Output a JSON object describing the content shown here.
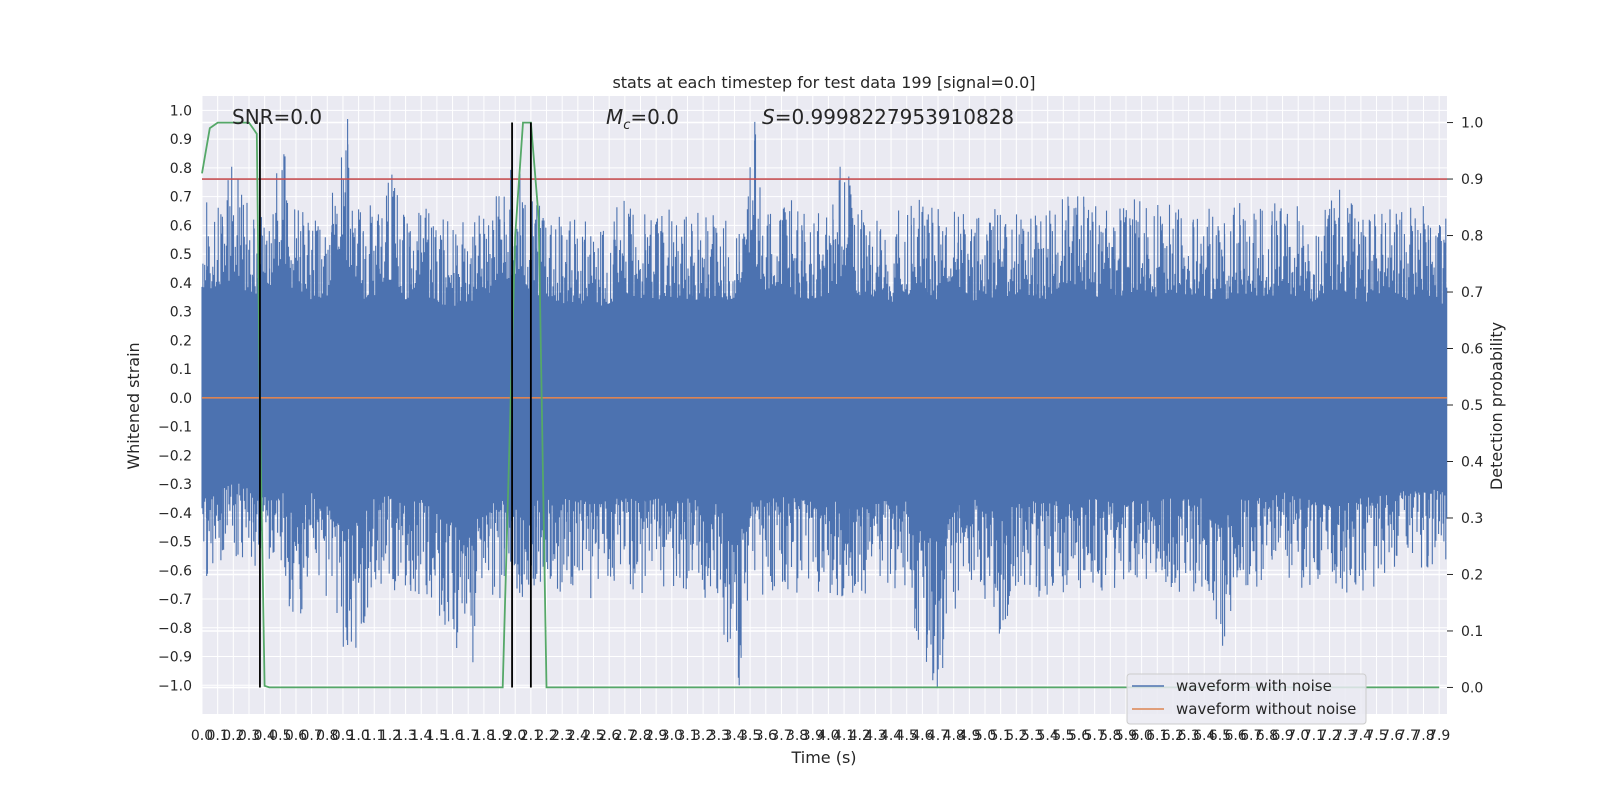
{
  "chart_data": {
    "type": "line",
    "title": "stats at each timestep for test data 199 [signal=0.0]",
    "xlabel": "Time (s)",
    "ylabel_left": "Whitened strain",
    "ylabel_right": "Detection probability",
    "xlim": [
      0.0,
      7.95
    ],
    "ylim_left": [
      -1.1,
      1.05
    ],
    "ylim_right": [
      -0.047,
      1.047
    ],
    "x_ticks": [
      "0.0",
      "0.1",
      "0.2",
      "0.3",
      "0.4",
      "0.5",
      "0.6",
      "0.7",
      "0.8",
      "0.9",
      "1.0",
      "1.1",
      "1.2",
      "1.3",
      "1.4",
      "1.5",
      "1.6",
      "1.7",
      "1.8",
      "1.9",
      "2.0",
      "2.1",
      "2.2",
      "2.3",
      "2.4",
      "2.5",
      "2.6",
      "2.7",
      "2.8",
      "2.9",
      "3.0",
      "3.1",
      "3.2",
      "3.3",
      "3.4",
      "3.5",
      "3.6",
      "3.7",
      "3.8",
      "3.9",
      "4.0",
      "4.1",
      "4.2",
      "4.3",
      "4.4",
      "4.5",
      "4.6",
      "4.7",
      "4.8",
      "4.9",
      "5.0",
      "5.1",
      "5.2",
      "5.3",
      "5.4",
      "5.5",
      "5.6",
      "5.7",
      "5.8",
      "5.9",
      "6.0",
      "6.1",
      "6.2",
      "6.3",
      "6.4",
      "6.5",
      "6.6",
      "6.7",
      "6.8",
      "6.9",
      "7.0",
      "7.1",
      "7.2",
      "7.3",
      "7.4",
      "7.5",
      "7.6",
      "7.7",
      "7.8",
      "7.9"
    ],
    "y_ticks_left": [
      "1.0",
      "0.9",
      "0.8",
      "0.7",
      "0.6",
      "0.5",
      "0.4",
      "0.3",
      "0.2",
      "0.1",
      "0.0",
      "-0.1",
      "-0.2",
      "-0.3",
      "-0.4",
      "-0.5",
      "-0.6",
      "-0.7",
      "-0.8",
      "-0.9",
      "-1.0"
    ],
    "y_ticks_right": [
      "1.0",
      "0.9",
      "0.8",
      "0.7",
      "0.6",
      "0.5",
      "0.4",
      "0.3",
      "0.2",
      "0.1",
      "0.0"
    ],
    "annotations": {
      "snr": "SNR=0.0",
      "mc_symbol": "M",
      "mc_sub": "c",
      "mc_value": "=0.0",
      "s_symbol": "S",
      "s_value": "=0.9998227953910828"
    },
    "series": [
      {
        "name": "waveform with noise",
        "color": "#4c72b0",
        "axis": "left",
        "envelope_x": [
          0.0,
          0.1,
          0.2,
          0.3,
          0.4,
          0.5,
          0.6,
          0.7,
          0.8,
          0.9,
          1.0,
          1.1,
          1.2,
          1.3,
          1.4,
          1.5,
          1.6,
          1.7,
          1.8,
          1.9,
          2.0,
          2.1,
          2.2,
          2.3,
          2.4,
          2.5,
          2.6,
          2.7,
          2.8,
          2.9,
          3.0,
          3.1,
          3.2,
          3.3,
          3.4,
          3.5,
          3.6,
          3.7,
          3.8,
          3.9,
          4.0,
          4.1,
          4.2,
          4.3,
          4.4,
          4.5,
          4.6,
          4.7,
          4.8,
          4.9,
          5.0,
          5.1,
          5.2,
          5.3,
          5.4,
          5.5,
          5.6,
          5.7,
          5.8,
          5.9,
          6.0,
          6.1,
          6.2,
          6.3,
          6.4,
          6.5,
          6.6,
          6.7,
          6.8,
          6.9,
          7.0,
          7.1,
          7.2,
          7.3,
          7.4,
          7.5,
          7.6,
          7.7,
          7.8,
          7.9
        ],
        "envelope_max": [
          0.68,
          0.63,
          0.76,
          0.62,
          0.58,
          0.84,
          0.58,
          0.58,
          0.6,
          0.97,
          0.58,
          0.6,
          0.73,
          0.58,
          0.62,
          0.55,
          0.53,
          0.56,
          0.6,
          0.7,
          0.78,
          0.62,
          0.6,
          0.55,
          0.56,
          0.52,
          0.55,
          0.63,
          0.57,
          0.58,
          0.6,
          0.58,
          0.58,
          0.59,
          0.57,
          0.96,
          0.64,
          0.62,
          0.6,
          0.58,
          0.62,
          0.77,
          0.6,
          0.58,
          0.55,
          0.6,
          0.62,
          0.58,
          0.63,
          0.56,
          0.58,
          0.6,
          0.62,
          0.6,
          0.58,
          0.7,
          0.7,
          0.6,
          0.58,
          0.6,
          0.66,
          0.6,
          0.62,
          0.62,
          0.6,
          0.57,
          0.6,
          0.62,
          0.6,
          0.63,
          0.6,
          0.56,
          0.66,
          0.64,
          0.56,
          0.57,
          0.6,
          0.58,
          0.6,
          0.55
        ],
        "envelope_min": [
          -0.62,
          -0.53,
          -0.48,
          -0.5,
          -0.56,
          -0.52,
          -0.75,
          -0.54,
          -0.62,
          -0.86,
          -0.78,
          -0.6,
          -0.58,
          -0.65,
          -0.6,
          -0.72,
          -0.78,
          -0.92,
          -0.6,
          -0.62,
          -0.62,
          -0.63,
          -0.6,
          -0.6,
          -0.6,
          -0.63,
          -0.62,
          -0.58,
          -0.62,
          -0.6,
          -0.62,
          -0.6,
          -0.62,
          -0.62,
          -1.0,
          -0.6,
          -0.62,
          -0.58,
          -0.6,
          -0.6,
          -0.6,
          -0.62,
          -0.6,
          -0.62,
          -0.6,
          -0.6,
          -0.87,
          -0.94,
          -0.67,
          -0.6,
          -0.62,
          -0.77,
          -0.62,
          -0.62,
          -0.63,
          -0.6,
          -0.6,
          -0.6,
          -0.6,
          -0.6,
          -0.63,
          -0.6,
          -0.6,
          -0.6,
          -0.6,
          -0.83,
          -0.6,
          -0.6,
          -0.55,
          -0.55,
          -0.6,
          -0.6,
          -0.6,
          -0.6,
          -0.6,
          -0.58,
          -0.55,
          -0.54,
          -0.55,
          -0.5
        ]
      },
      {
        "name": "waveform without noise",
        "color": "#dd8452",
        "axis": "left",
        "x": [
          0.0,
          7.95
        ],
        "y": [
          0.0,
          0.0
        ]
      },
      {
        "color": "#55a868",
        "axis": "right",
        "x": [
          0.0,
          0.05,
          0.1,
          0.2,
          0.3,
          0.35,
          0.37,
          0.4,
          0.43,
          0.5,
          0.6,
          0.8,
          1.0,
          1.5,
          1.9,
          1.92,
          1.95,
          2.0,
          2.05,
          2.1,
          2.15,
          2.2,
          2.25,
          2.3,
          2.5,
          3.0,
          4.0,
          5.0,
          6.0,
          7.0,
          7.9
        ],
        "y": [
          0.91,
          0.99,
          1.0,
          1.0,
          1.0,
          0.98,
          0.5,
          0.003,
          0.0,
          0.0,
          0.0,
          0.0,
          0.0,
          0.0,
          0.0,
          0.0,
          0.3,
          0.8,
          1.0,
          1.0,
          0.83,
          0.0,
          0.0,
          0.0,
          0.0,
          0.0,
          0.0,
          0.0,
          0.0,
          0.0,
          0.0
        ]
      }
    ],
    "threshold": {
      "value": 0.9,
      "axis": "right",
      "color": "#c44e52"
    },
    "vertical_lines": {
      "x": [
        0.37,
        1.98,
        2.1
      ],
      "ymin": 0.0,
      "ymax": 1.0,
      "axis": "right",
      "color": "#000000"
    },
    "legend": {
      "placement": "bottom-right"
    },
    "grid": true
  }
}
